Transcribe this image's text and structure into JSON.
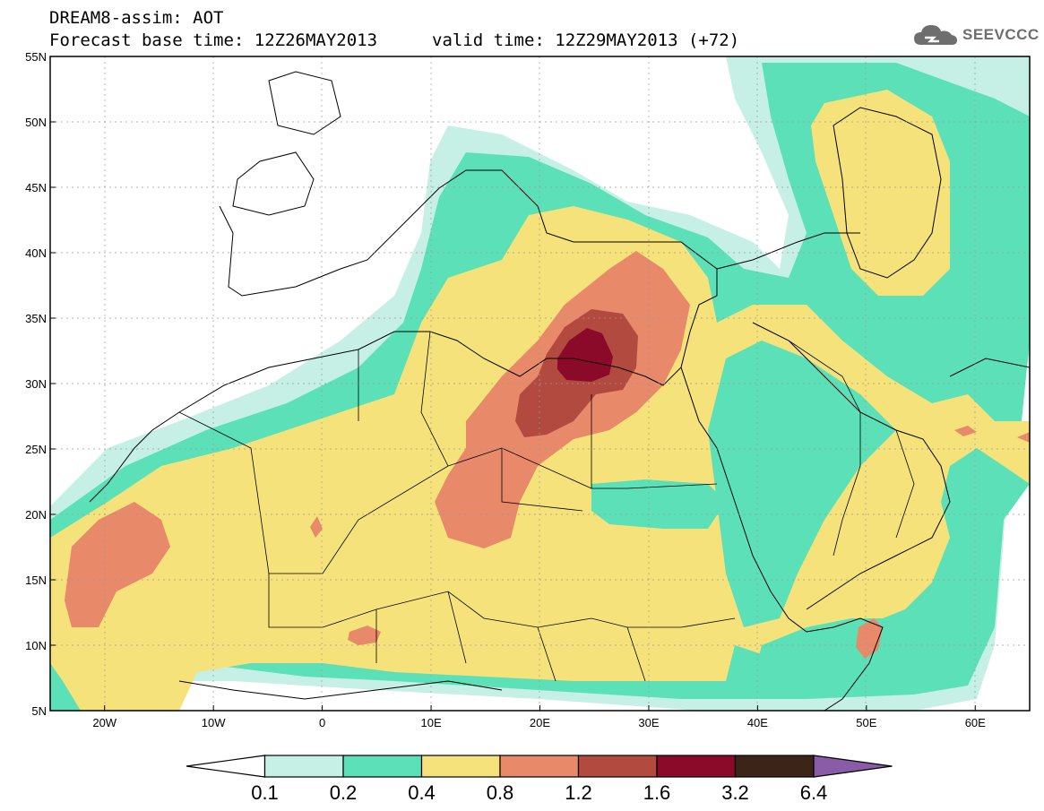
{
  "header": {
    "line1": "DREAM8-assim: AOT",
    "line2": "Forecast base time: 12Z26MAY2013",
    "line3": "valid time: 12Z29MAY2013 (+72)",
    "logo_text": "SEEVCCC",
    "logo_icon": "cloud-icon"
  },
  "axes": {
    "lat_labels": [
      "55N",
      "50N",
      "45N",
      "40N",
      "35N",
      "30N",
      "25N",
      "20N",
      "15N",
      "10N",
      "5N"
    ],
    "lon_labels": [
      "20W",
      "10W",
      "0",
      "10E",
      "20E",
      "30E",
      "40E",
      "50E",
      "60E"
    ],
    "lon_range": [
      -25,
      65
    ],
    "lat_range": [
      5,
      55
    ]
  },
  "colorbar": {
    "labels": [
      "0.1",
      "0.2",
      "0.4",
      "0.8",
      "1.2",
      "1.6",
      "3.2",
      "6.4"
    ],
    "colors": [
      "#ffffff",
      "#c6efe6",
      "#5ce0b8",
      "#f6e27a",
      "#e8896a",
      "#b34a40",
      "#8b0a2a",
      "#3d2418",
      "#8a5ca8"
    ]
  },
  "palette": {
    "c01": "#c6efe6",
    "c02": "#5ce0b8",
    "c04": "#f6e27a",
    "c08": "#e8896a",
    "c12": "#b34a40",
    "c16": "#8b0a2a"
  }
}
